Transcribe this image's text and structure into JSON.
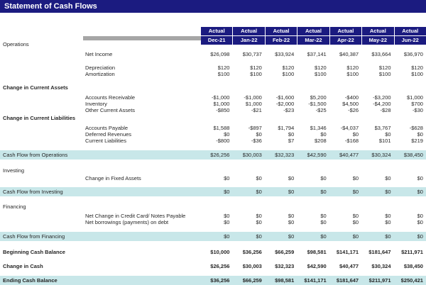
{
  "title": "Statement of Cash Flows",
  "colors": {
    "navy": "#1B1B80",
    "teal": "#C8E7E9",
    "grayBar": "#A6A6A6",
    "text": "#262626"
  },
  "header": {
    "status_labels": [
      "Actual",
      "Actual",
      "Actual",
      "Actual",
      "Actual",
      "Actual",
      "Actual"
    ],
    "months": [
      "Dec-21",
      "Jan-22",
      "Feb-22",
      "Mar-22",
      "Apr-22",
      "May-22",
      "Jun-22"
    ]
  },
  "rows": [
    {
      "type": "section",
      "label": "Operations",
      "bold": false
    },
    {
      "type": "spacer",
      "h": 5
    },
    {
      "type": "item",
      "label": "Net Income",
      "values": [
        "$26,098",
        "$30,737",
        "$33,924",
        "$37,141",
        "$40,387",
        "$33,664",
        "$36,970"
      ]
    },
    {
      "type": "spacer",
      "h": 10
    },
    {
      "type": "item",
      "label": "Depreciation",
      "values": [
        "$120",
        "$120",
        "$120",
        "$120",
        "$120",
        "$120",
        "$120"
      ]
    },
    {
      "type": "item",
      "label": "Amortization",
      "values": [
        "$100",
        "$100",
        "$100",
        "$100",
        "$100",
        "$100",
        "$100"
      ]
    },
    {
      "type": "spacer",
      "h": 10
    },
    {
      "type": "section",
      "label": "Change in Current Assets",
      "bold": true
    },
    {
      "type": "spacer",
      "h": 5
    },
    {
      "type": "item",
      "label": "Accounts Receivable",
      "values": [
        "-$1,000",
        "-$1,000",
        "-$1,600",
        "$5,200",
        "-$400",
        "-$3,200",
        "$1,000"
      ]
    },
    {
      "type": "item",
      "label": "Inventory",
      "values": [
        "$1,000",
        "$1,000",
        "-$2,000",
        "-$1,500",
        "$4,500",
        "-$4,200",
        "$700"
      ]
    },
    {
      "type": "item",
      "label": "Other Current Assets",
      "values": [
        "-$850",
        "-$21",
        "-$23",
        "-$25",
        "-$26",
        "-$28",
        "-$30"
      ]
    },
    {
      "type": "spacer",
      "h": 2
    },
    {
      "type": "section",
      "label": "Change in Current Liabilities",
      "bold": true
    },
    {
      "type": "spacer",
      "h": 5
    },
    {
      "type": "item",
      "label": "Accounts Payable",
      "values": [
        "$1,588",
        "-$897",
        "$1,794",
        "$1,346",
        "-$4,037",
        "$3,767",
        "-$628"
      ]
    },
    {
      "type": "item",
      "label": "Deferred Revenues",
      "values": [
        "$0",
        "$0",
        "$0",
        "$0",
        "$0",
        "$0",
        "$0"
      ]
    },
    {
      "type": "item",
      "label": "Current Liabilities",
      "values": [
        "-$800",
        "-$36",
        "$7",
        "$208",
        "-$168",
        "$101",
        "$219"
      ]
    },
    {
      "type": "spacer",
      "h": 9
    },
    {
      "type": "total",
      "label": "Cash Flow from Operations",
      "bold": false,
      "values": [
        "$26,256",
        "$30,003",
        "$32,323",
        "$42,590",
        "$40,477",
        "$30,324",
        "$38,450"
      ]
    },
    {
      "type": "spacer",
      "h": 11
    },
    {
      "type": "section",
      "label": "Investing",
      "bold": false
    },
    {
      "type": "spacer",
      "h": 2
    },
    {
      "type": "item",
      "label": "Change in Fixed Assets",
      "values": [
        "$0",
        "$0",
        "$0",
        "$0",
        "$0",
        "$0",
        "$0"
      ]
    },
    {
      "type": "spacer",
      "h": 8
    },
    {
      "type": "total",
      "label": "Cash Flow from Investing",
      "bold": false,
      "values": [
        "$0",
        "$0",
        "$0",
        "$0",
        "$0",
        "$0",
        "$0"
      ]
    },
    {
      "type": "spacer",
      "h": 10
    },
    {
      "type": "section",
      "label": "Financing",
      "bold": false
    },
    {
      "type": "spacer",
      "h": 4
    },
    {
      "type": "item",
      "label": "Net Change in Credit Card/ Notes Payable",
      "values": [
        "$0",
        "$0",
        "$0",
        "$0",
        "$0",
        "$0",
        "$0"
      ]
    },
    {
      "type": "item",
      "label": "Net borrowings (payments) on debt",
      "values": [
        "$0",
        "$0",
        "$0",
        "$0",
        "$0",
        "$0",
        "$0"
      ]
    },
    {
      "type": "spacer",
      "h": 9
    },
    {
      "type": "total",
      "label": "Cash Flow from Financing",
      "bold": false,
      "values": [
        "$0",
        "$0",
        "$0",
        "$0",
        "$0",
        "$0",
        "$0"
      ]
    },
    {
      "type": "spacer",
      "h": 11
    },
    {
      "type": "summary",
      "label": "Beginning Cash Balance",
      "bold": true,
      "values": [
        "$10,000",
        "$36,256",
        "$66,259",
        "$98,581",
        "$141,171",
        "$181,647",
        "$211,971"
      ]
    },
    {
      "type": "spacer",
      "h": 11
    },
    {
      "type": "summary",
      "label": "Change in Cash",
      "bold": true,
      "values": [
        "$26,256",
        "$30,003",
        "$32,323",
        "$42,590",
        "$40,477",
        "$30,324",
        "$38,450"
      ]
    },
    {
      "type": "spacer",
      "h": 9
    },
    {
      "type": "total",
      "label": "Ending Cash Balance",
      "bold": true,
      "values": [
        "$36,256",
        "$66,259",
        "$98,581",
        "$141,171",
        "$181,647",
        "$211,971",
        "$250,421"
      ]
    }
  ]
}
